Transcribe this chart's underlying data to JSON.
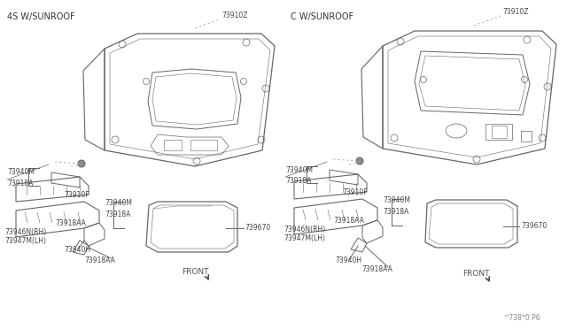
{
  "bg_color": "#ffffff",
  "line_color": "#666666",
  "text_color": "#444444",
  "section1_title": "4S W/SUNROOF",
  "section2_title": "C W/SUNROOF",
  "watermark": "^738*0:P6",
  "fs_label": 5.5,
  "fs_title": 7.0,
  "fs_front": 6.5
}
